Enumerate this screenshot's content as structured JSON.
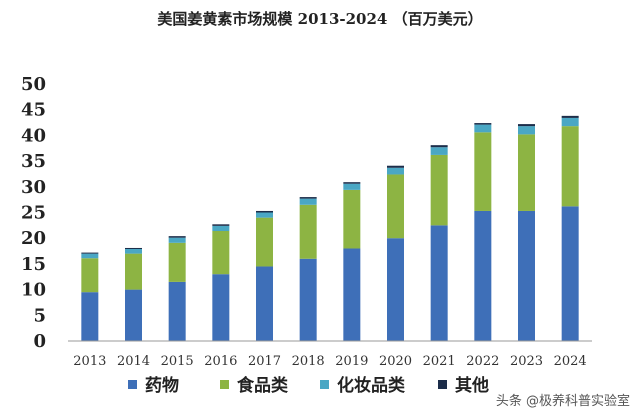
{
  "chart_data": {
    "type": "bar",
    "stacked": true,
    "title": "美国姜黄素市场规模 2013-2024 （百万美元）",
    "categories": [
      "2013",
      "2014",
      "2015",
      "2016",
      "2017",
      "2018",
      "2019",
      "2020",
      "2021",
      "2022",
      "2023",
      "2024"
    ],
    "ylim": [
      0,
      50
    ],
    "yticks": [
      0,
      5,
      10,
      15,
      20,
      25,
      30,
      35,
      40,
      45,
      50
    ],
    "grid": false,
    "legend_position": "bottom",
    "series": [
      {
        "name": "药物",
        "color": "#3e6fb8",
        "values": [
          9.5,
          10,
          11.5,
          13,
          14.5,
          16,
          18,
          20,
          22.5,
          25.3,
          25.3,
          26.2
        ]
      },
      {
        "name": "食品类",
        "color": "#8db443",
        "values": [
          6.6,
          7,
          7.6,
          8.4,
          9.5,
          10.5,
          11.4,
          12.4,
          13.7,
          15.3,
          14.9,
          15.6
        ]
      },
      {
        "name": "化妆品类",
        "color": "#4aa7c4",
        "values": [
          0.9,
          0.9,
          1,
          1,
          1,
          1.2,
          1.2,
          1.3,
          1.5,
          1.5,
          1.6,
          1.6
        ]
      },
      {
        "name": "其他",
        "color": "#1c2d4a",
        "values": [
          0.2,
          0.2,
          0.3,
          0.3,
          0.3,
          0.3,
          0.3,
          0.4,
          0.4,
          0.3,
          0.4,
          0.4
        ]
      }
    ]
  },
  "watermark": "头条 @极养科普实验室"
}
